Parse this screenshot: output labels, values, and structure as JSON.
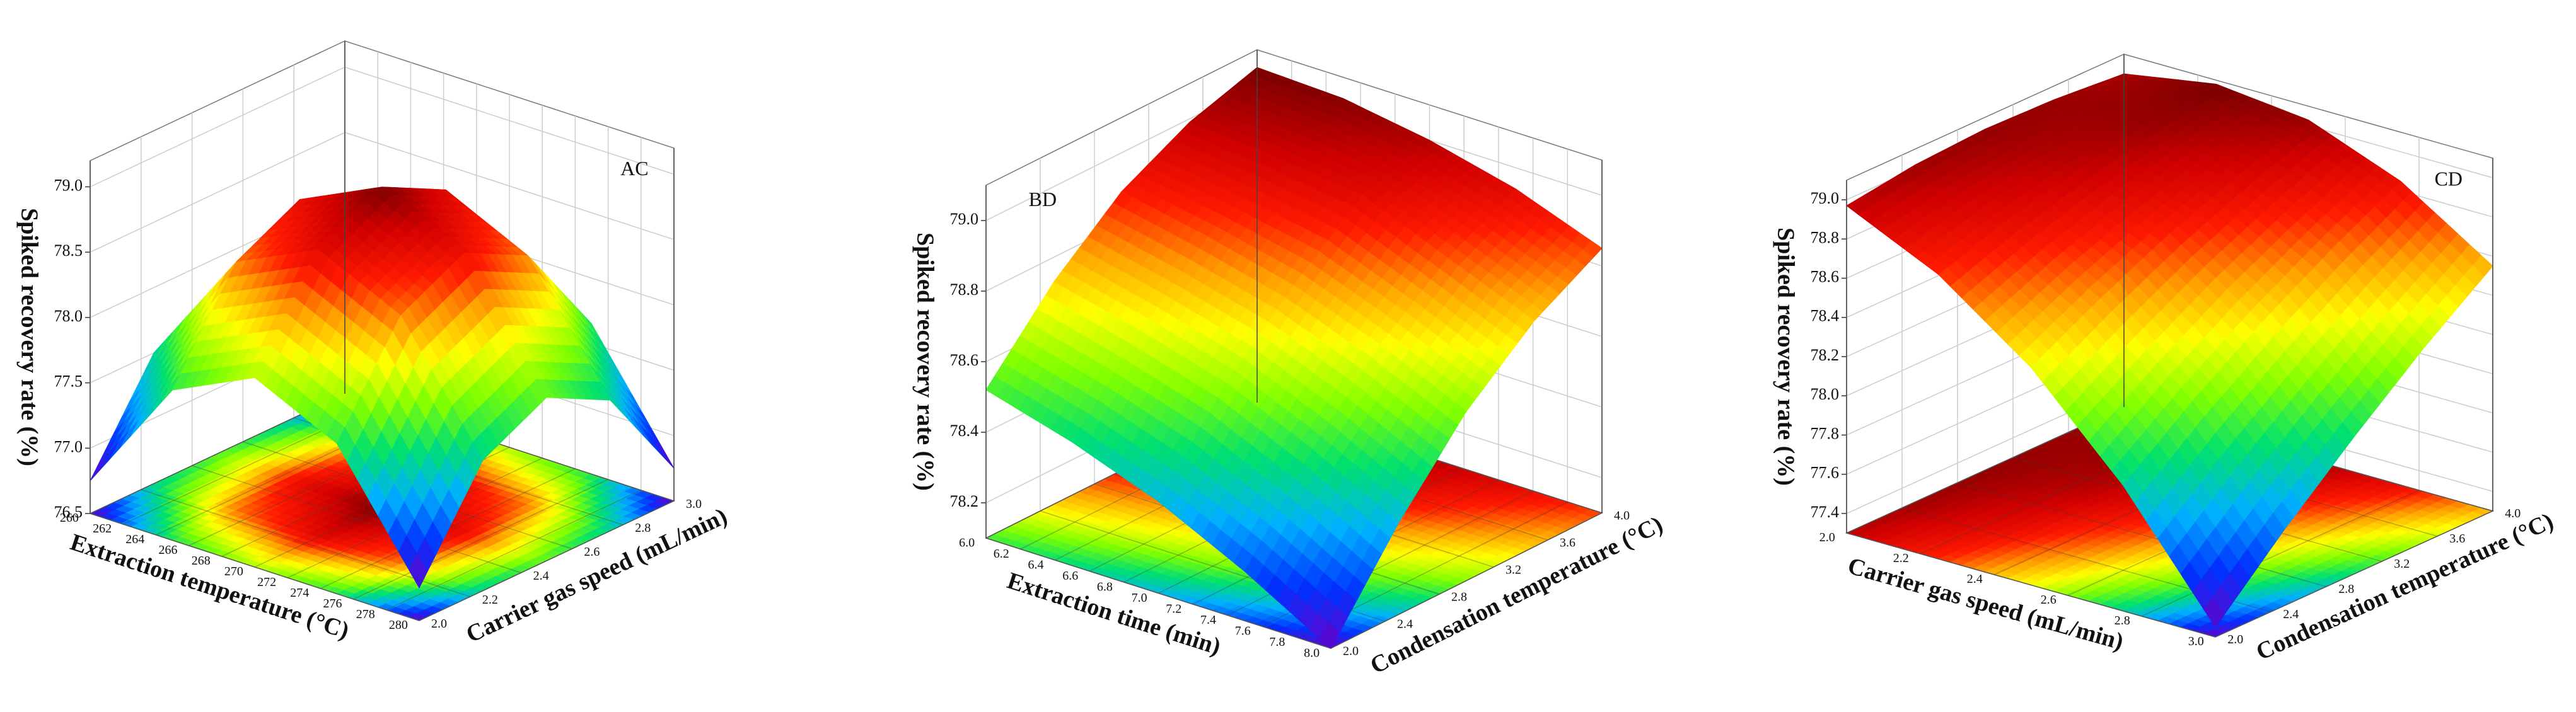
{
  "chart_data": [
    {
      "type": "surface3d",
      "panel_label": "AC",
      "z_label": "Spiked recovery rate (%)",
      "x_label": "Extraction temperature (°C)",
      "y_label": "Carrier gas speed (mL/min)",
      "x": [
        260,
        265,
        270,
        275,
        280
      ],
      "y": [
        2,
        2.25,
        2.5,
        2.75,
        3
      ],
      "z": [
        [
          76.75,
          77.5,
          77.75,
          77.5,
          76.75
        ],
        [
          77.65,
          78.4,
          78.65,
          78.4,
          77.65
        ],
        [
          77.95,
          78.7,
          78.95,
          78.7,
          77.95
        ],
        [
          77.65,
          78.4,
          78.65,
          78.4,
          77.65
        ],
        [
          76.75,
          77.5,
          77.75,
          77.5,
          76.75
        ]
      ],
      "xlim": [
        260,
        280
      ],
      "xticks": [
        260,
        262,
        264,
        266,
        268,
        270,
        272,
        274,
        276,
        278,
        280
      ],
      "ylim": [
        2,
        3
      ],
      "yticks": [
        {
          "value": 2,
          "label": "2.0"
        },
        2.2,
        2.4,
        2.6,
        2.8,
        {
          "value": 3,
          "label": "3.0"
        }
      ],
      "zlim": [
        76.5,
        79.2
      ],
      "zticks": [
        76.5,
        {
          "value": 77,
          "label": "77.0"
        },
        77.5,
        {
          "value": 78,
          "label": "78.0"
        },
        78.5,
        {
          "value": 79,
          "label": "79.0"
        }
      ]
    },
    {
      "type": "surface3d",
      "panel_label": "BD",
      "z_label": "Spiked recovery rate (%)",
      "x_label": "Extraction time (min)",
      "y_label": "Condensation temperature (°C)",
      "x": [
        6,
        6.5,
        7,
        7.5,
        8
      ],
      "y": [
        2,
        2.5,
        3,
        3.5,
        4
      ],
      "z": [
        [
          78.52,
          78.73,
          78.89,
          78.99,
          79.05
        ],
        [
          78.45,
          78.67,
          78.84,
          78.97,
          79.04
        ],
        [
          78.36,
          78.6,
          78.78,
          78.94,
          79.0
        ],
        [
          78.24,
          78.49,
          78.69,
          78.84,
          78.94
        ],
        [
          78.1,
          78.36,
          78.58,
          78.74,
          78.85
        ]
      ],
      "xlim": [
        6,
        8
      ],
      "xticks": [
        {
          "value": 6,
          "label": "6.0"
        },
        6.2,
        6.4,
        6.6,
        6.8,
        {
          "value": 7,
          "label": "7.0"
        },
        7.2,
        7.4,
        7.6,
        7.8,
        {
          "value": 8,
          "label": "8.0"
        }
      ],
      "ylim": [
        2,
        4
      ],
      "yticks": [
        {
          "value": 2,
          "label": "2.0"
        },
        2.4,
        2.8,
        3.2,
        3.6,
        {
          "value": 4,
          "label": "4.0"
        }
      ],
      "zlim": [
        78.1,
        79.1
      ],
      "zticks": [
        78.2,
        78.4,
        78.6,
        78.8,
        {
          "value": 79,
          "label": "79.0"
        }
      ]
    },
    {
      "type": "surface3d",
      "panel_label": "CD",
      "z_label": "Spiked recovery rate (%)",
      "x_label": "Carrier gas speed (mL/min)",
      "y_label": "Condensation temperature (°C)",
      "x": [
        2,
        2.25,
        2.5,
        2.75,
        3
      ],
      "y": [
        2,
        2.5,
        3,
        3.5,
        4
      ],
      "z": [
        [
          78.97,
          79.02,
          79.04,
          79.03,
          79.0
        ],
        [
          78.75,
          78.87,
          78.96,
          79.03,
          79.08
        ],
        [
          78.41,
          78.6,
          78.77,
          78.91,
          79.03
        ],
        [
          77.94,
          78.21,
          78.45,
          78.66,
          78.85
        ],
        [
          77.35,
          77.69,
          78.0,
          78.29,
          78.55
        ]
      ],
      "xlim": [
        2,
        3
      ],
      "xticks": [
        {
          "value": 2,
          "label": "2.0"
        },
        2.2,
        2.4,
        2.6,
        2.8,
        {
          "value": 3,
          "label": "3.0"
        }
      ],
      "ylim": [
        2,
        4
      ],
      "yticks": [
        {
          "value": 2,
          "label": "2.0"
        },
        2.4,
        2.8,
        3.2,
        3.6,
        {
          "value": 4,
          "label": "4.0"
        }
      ],
      "zlim": [
        77.3,
        79.1
      ],
      "zticks": [
        77.4,
        77.6,
        77.8,
        {
          "value": 78,
          "label": "78.0"
        },
        78.2,
        78.4,
        78.6,
        78.8,
        {
          "value": 79,
          "label": "79.0"
        }
      ]
    }
  ]
}
